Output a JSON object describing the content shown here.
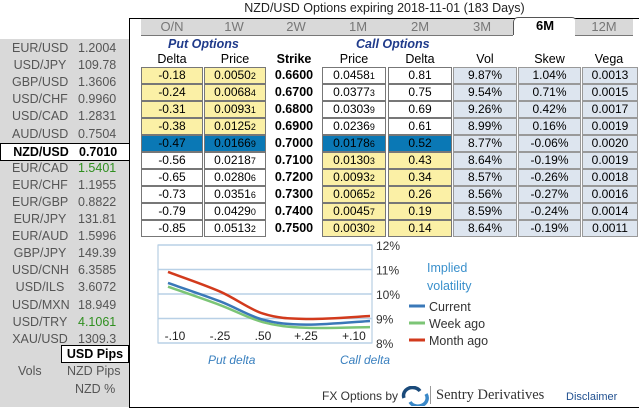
{
  "title": "NZD/USD Options expiring 2018-11-01 (183 Days)",
  "pairs": [
    {
      "name": "EUR/USD",
      "value": "1.2004"
    },
    {
      "name": "USD/JPY",
      "value": "109.78"
    },
    {
      "name": "GBP/USD",
      "value": "1.3606"
    },
    {
      "name": "USD/CHF",
      "value": "0.9960"
    },
    {
      "name": "USD/CAD",
      "value": "1.2831"
    },
    {
      "name": "AUD/USD",
      "value": "0.7504"
    },
    {
      "name": "NZD/USD",
      "value": "0.7010",
      "selected": true
    },
    {
      "name": "EUR/CAD",
      "value": "1.5401",
      "color": "green"
    },
    {
      "name": "EUR/CHF",
      "value": "1.1955"
    },
    {
      "name": "EUR/GBP",
      "value": "0.8822"
    },
    {
      "name": "EUR/JPY",
      "value": "131.81"
    },
    {
      "name": "EUR/AUD",
      "value": "1.5996"
    },
    {
      "name": "GBP/JPY",
      "value": "149.39"
    },
    {
      "name": "USD/CNH",
      "value": "6.3585"
    },
    {
      "name": "USD/ILS",
      "value": "3.6072"
    },
    {
      "name": "USD/MXN",
      "value": "18.949"
    },
    {
      "name": "USD/TRY",
      "value": "4.1061",
      "color": "green"
    },
    {
      "name": "XAU/USD",
      "value": "1309.3"
    }
  ],
  "units": {
    "selected": "USD Pips",
    "vols_label": "Vols",
    "options": [
      "NZD Pips",
      "NZD %"
    ]
  },
  "tabs": [
    {
      "label": "O/N"
    },
    {
      "label": "1W"
    },
    {
      "label": "2W"
    },
    {
      "label": "1M"
    },
    {
      "label": "2M"
    },
    {
      "label": "3M"
    },
    {
      "label": "6M",
      "active": true
    },
    {
      "label": "12M"
    }
  ],
  "headers": {
    "put_group": "Put Options",
    "call_group": "Call Options",
    "put_delta": "Delta",
    "put_price": "Price",
    "strike": "Strike",
    "call_price": "Price",
    "call_delta": "Delta",
    "vol": "Vol",
    "skew": "Skew",
    "vega": "Vega"
  },
  "rows": [
    {
      "put_delta": "-0.18",
      "put_price": "0.0050",
      "put_price_sub": "2",
      "strike": "0.6600",
      "call_price": "0.0458",
      "call_price_sub": "1",
      "call_delta": "0.81",
      "vol": "9.87%",
      "skew": "1.04%",
      "vega": "0.0013"
    },
    {
      "put_delta": "-0.24",
      "put_price": "0.0068",
      "put_price_sub": "4",
      "strike": "0.6700",
      "call_price": "0.0377",
      "call_price_sub": "3",
      "call_delta": "0.75",
      "vol": "9.54%",
      "skew": "0.71%",
      "vega": "0.0015"
    },
    {
      "put_delta": "-0.31",
      "put_price": "0.0093",
      "put_price_sub": "1",
      "strike": "0.6800",
      "call_price": "0.0303",
      "call_price_sub": "9",
      "call_delta": "0.69",
      "vol": "9.26%",
      "skew": "0.42%",
      "vega": "0.0017"
    },
    {
      "put_delta": "-0.38",
      "put_price": "0.0125",
      "put_price_sub": "2",
      "strike": "0.6900",
      "call_price": "0.0236",
      "call_price_sub": "9",
      "call_delta": "0.61",
      "vol": "8.99%",
      "skew": "0.16%",
      "vega": "0.0019"
    },
    {
      "put_delta": "-0.47",
      "put_price": "0.0166",
      "put_price_sub": "9",
      "strike": "0.7000",
      "call_price": "0.0178",
      "call_price_sub": "6",
      "call_delta": "0.52",
      "vol": "8.77%",
      "skew": "-0.06%",
      "vega": "0.0020"
    },
    {
      "put_delta": "-0.56",
      "put_price": "0.0218",
      "put_price_sub": "7",
      "strike": "0.7100",
      "call_price": "0.0130",
      "call_price_sub": "3",
      "call_delta": "0.43",
      "vol": "8.64%",
      "skew": "-0.19%",
      "vega": "0.0019"
    },
    {
      "put_delta": "-0.65",
      "put_price": "0.0280",
      "put_price_sub": "6",
      "strike": "0.7200",
      "call_price": "0.0093",
      "call_price_sub": "2",
      "call_delta": "0.34",
      "vol": "8.57%",
      "skew": "-0.26%",
      "vega": "0.0018"
    },
    {
      "put_delta": "-0.73",
      "put_price": "0.0351",
      "put_price_sub": "6",
      "strike": "0.7300",
      "call_price": "0.0065",
      "call_price_sub": "2",
      "call_delta": "0.26",
      "vol": "8.56%",
      "skew": "-0.27%",
      "vega": "0.0016"
    },
    {
      "put_delta": "-0.79",
      "put_price": "0.0429",
      "put_price_sub": "0",
      "strike": "0.7400",
      "call_price": "0.0045",
      "call_price_sub": "7",
      "call_delta": "0.19",
      "vol": "8.59%",
      "skew": "-0.24%",
      "vega": "0.0014"
    },
    {
      "put_delta": "-0.85",
      "put_price": "0.0513",
      "put_price_sub": "2",
      "strike": "0.7500",
      "call_price": "0.0030",
      "call_price_sub": "2",
      "call_delta": "0.14",
      "vol": "8.64%",
      "skew": "-0.19%",
      "vega": "0.0011"
    }
  ],
  "colors": {
    "itm": "#fbf0a6",
    "atm": "#0a78b5",
    "otm": "#ffffff",
    "greeks": "#dde5ef"
  },
  "chart_data": {
    "type": "line",
    "title": "Implied volatility",
    "x": [
      "-.10",
      "-.25",
      ".50",
      "+.25",
      "+.10"
    ],
    "xlabel_left": "Put delta",
    "xlabel_right": "Call delta",
    "yticks": [
      "12%",
      "11%",
      "10%",
      "9%",
      "8%"
    ],
    "ylim": [
      8,
      12
    ],
    "y_axis": "right",
    "grid": true,
    "legend": "right",
    "series": [
      {
        "name": "Current",
        "color": "#3a78b8",
        "values": [
          10.45,
          9.7,
          8.95,
          8.75,
          8.9
        ]
      },
      {
        "name": "Week ago",
        "color": "#7cc576",
        "values": [
          10.3,
          9.55,
          8.85,
          8.62,
          8.65
        ]
      },
      {
        "name": "Month ago",
        "color": "#d23a1c",
        "values": [
          10.9,
          10.1,
          9.2,
          8.98,
          9.1
        ]
      }
    ]
  },
  "footer": {
    "prefix": "FX Options by",
    "brand": "Sentry Derivatives",
    "disclaimer": "Disclaimer"
  }
}
